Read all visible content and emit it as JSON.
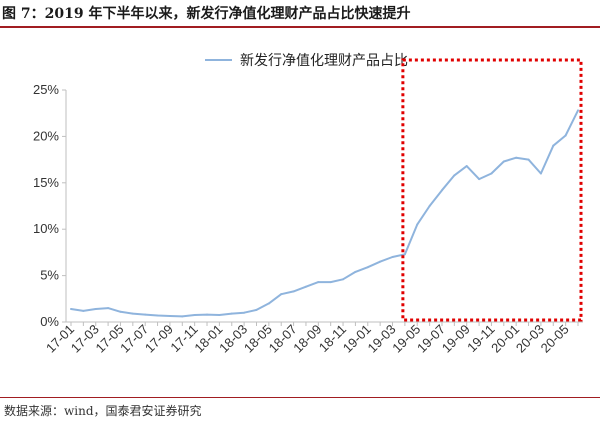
{
  "header": {
    "figure_title": "图 7：2019 年下半年以来，新发行净值化理财产品占比快速提升"
  },
  "footer": {
    "source": "数据来源：wind，国泰君安证券研究"
  },
  "colors": {
    "series_line": "#8fb4dd",
    "highlight_box": "#e00000",
    "axis": "#bfbfbf",
    "title_rule": "#a11d21"
  },
  "chart_data": {
    "type": "line",
    "legend_position": "top-center",
    "grid": false,
    "xlabel": "",
    "ylabel": "",
    "ylim": [
      0,
      25
    ],
    "y_ticks": [
      "0%",
      "5%",
      "10%",
      "15%",
      "20%",
      "25%"
    ],
    "x_tick_labels": [
      "17-01",
      "17-03",
      "17-05",
      "17-07",
      "17-09",
      "17-11",
      "18-01",
      "18-03",
      "18-05",
      "18-07",
      "18-09",
      "18-11",
      "19-01",
      "19-03",
      "19-05",
      "19-07",
      "19-09",
      "19-11",
      "20-01",
      "20-03",
      "20-05"
    ],
    "x": [
      "17-01",
      "17-02",
      "17-03",
      "17-04",
      "17-05",
      "17-06",
      "17-07",
      "17-08",
      "17-09",
      "17-10",
      "17-11",
      "17-12",
      "18-01",
      "18-02",
      "18-03",
      "18-04",
      "18-05",
      "18-06",
      "18-07",
      "18-08",
      "18-09",
      "18-10",
      "18-11",
      "18-12",
      "19-01",
      "19-02",
      "19-03",
      "19-04",
      "19-05",
      "19-06",
      "19-07",
      "19-08",
      "19-09",
      "19-10",
      "19-11",
      "19-12",
      "20-01",
      "20-02",
      "20-03",
      "20-04",
      "20-05",
      "20-06"
    ],
    "series": [
      {
        "name": "新发行净值化理财产品占比",
        "values": [
          1.4,
          1.2,
          1.4,
          1.5,
          1.1,
          0.9,
          0.8,
          0.7,
          0.65,
          0.6,
          0.75,
          0.8,
          0.75,
          0.9,
          1.0,
          1.3,
          2.0,
          3.0,
          3.3,
          3.8,
          4.3,
          4.3,
          4.6,
          5.4,
          5.9,
          6.5,
          7.0,
          7.3,
          10.5,
          12.5,
          14.2,
          15.8,
          16.8,
          15.4,
          16.0,
          17.3,
          17.7,
          17.5,
          16.0,
          19.0,
          20.1,
          22.8
        ]
      }
    ],
    "highlight_range": [
      "19-04",
      "20-06"
    ]
  }
}
